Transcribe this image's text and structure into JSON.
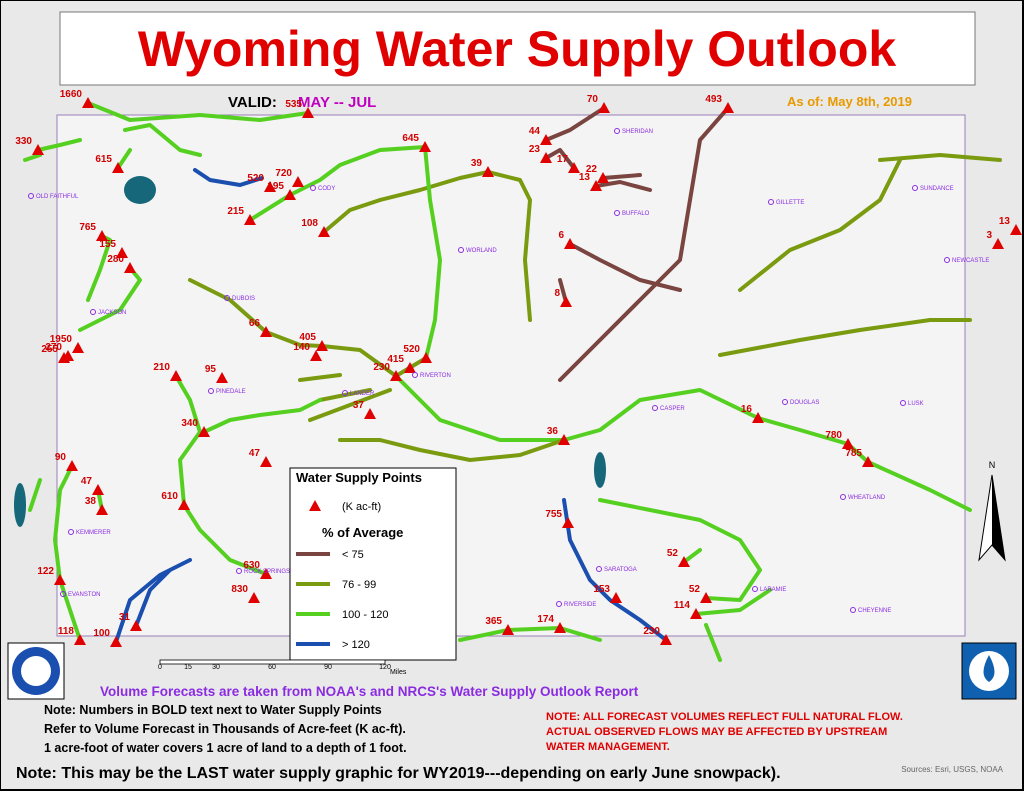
{
  "header": {
    "title": "Wyoming Water Supply Outlook",
    "valid_label": "VALID:",
    "valid_period": "MAY -- JUL",
    "as_of": "As of:  May 8th, 2019"
  },
  "points": [
    1660,
    535,
    330,
    615,
    520,
    720,
    195,
    215,
    108,
    645,
    39,
    44,
    23,
    17,
    22,
    70,
    13,
    493,
    765,
    155,
    280,
    6,
    8,
    3,
    13,
    1950,
    255,
    270,
    66,
    405,
    140,
    520,
    415,
    230,
    210,
    95,
    37,
    36,
    16,
    780,
    785,
    340,
    47,
    90,
    47,
    38,
    610,
    755,
    52,
    630,
    830,
    122,
    153,
    52,
    114,
    365,
    174,
    31,
    118,
    100,
    230
  ],
  "towns": [
    "OLD FAITHFUL",
    "SHERIDAN",
    "CODY",
    "BUFFALO",
    "GILLETTE",
    "SUNDANCE",
    "NEWCASTLE",
    "WORLAND",
    "DUBOIS",
    "JACKSON",
    "PINEDALE",
    "LANDER",
    "RIVERTON",
    "CASPER",
    "DOUGLAS",
    "LUSK",
    "WHEATLAND",
    "KEMMERER",
    "ROCK SPRINGS",
    "SARATOGA",
    "RIVERSIDE",
    "LARAMIE",
    "CHEYENNE",
    "EVANSTON"
  ],
  "legend": {
    "title": "Water Supply Points",
    "unit": "(K ac-ft)",
    "subtitle": "% of Average",
    "classes": [
      {
        "label": "< 75",
        "color": "#7a4540"
      },
      {
        "label": "76 - 99",
        "color": "#7a9a10"
      },
      {
        "label": "100 - 120",
        "color": "#55d020"
      },
      {
        "label": "> 120",
        "color": "#1a4fb0"
      }
    ]
  },
  "scale": {
    "ticks": [
      "0",
      "15",
      "30",
      "60",
      "90",
      "120"
    ],
    "unit": "Miles"
  },
  "north": "N",
  "notes": {
    "source": "Volume Forecasts are taken from NOAA's and NRCS's Water Supply Outlook Report",
    "lines": [
      "Note:  Numbers in BOLD text next to Water Supply Points",
      "Refer to Volume Forecast in Thousands of Acre-feet (K ac-ft).",
      "1 acre-foot of water covers 1 acre of land to a depth of 1 foot."
    ],
    "flow": [
      "NOTE:  ALL FORECAST VOLUMES REFLECT FULL NATURAL FLOW.",
      "ACTUAL OBSERVED FLOWS MAY BE AFFECTED BY UPSTREAM",
      "WATER MANAGEMENT."
    ],
    "bottom": "Note:  This may be the LAST water supply graphic for WY2019---depending on early June snowpack).",
    "credits": "Sources: Esri, USGS, NOAA"
  }
}
